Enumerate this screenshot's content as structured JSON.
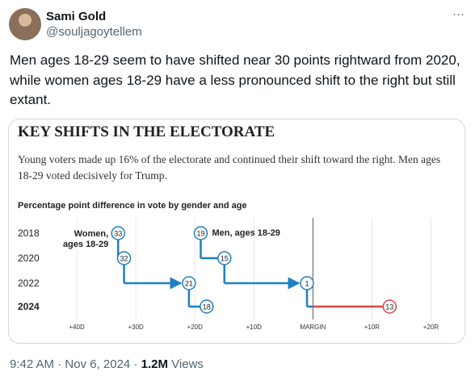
{
  "tweet": {
    "author": "Sami Gold",
    "handle": "@souljagoytellem",
    "more": "···",
    "text": "Men ages 18-29 seem to have shifted near 30 points rightward from 2020, while women ages 18-29 have a less pronounced shift to the right but still extant.",
    "time": "9:42 AM",
    "date": "Nov 6, 2024",
    "views": "1.2M",
    "views_label": "Views"
  },
  "chart_data": {
    "type": "step",
    "title": "KEY SHIFTS IN THE ELECTORATE",
    "subtitle": "Young voters made up 16% of the electorate and continued their shift toward the right. Men ages 18-29 voted decisively for Trump.",
    "axis_title": "Percentage point difference in vote by gender and age",
    "categories": [
      "2018",
      "2020",
      "2022",
      "2024"
    ],
    "series": [
      {
        "name": "Women, ages 18-29",
        "color": "#1f7fc4",
        "values": [
          -33,
          -32,
          -21,
          -18
        ],
        "value_labels": [
          "33",
          "32",
          "21",
          "18"
        ]
      },
      {
        "name": "Men, ages 18-29",
        "color": "#1f7fc4",
        "values": [
          -19,
          -15,
          -1,
          13
        ],
        "value_labels": [
          "19",
          "15",
          "1",
          "13"
        ]
      }
    ],
    "right_color": "#d9454a",
    "xlim": [
      -50,
      25
    ],
    "xticks": [
      {
        "value": -40,
        "label": "+40D"
      },
      {
        "value": -30,
        "label": "+30D"
      },
      {
        "value": -20,
        "label": "+20D"
      },
      {
        "value": -10,
        "label": "+10D"
      },
      {
        "value": 0,
        "label": "MARGIN"
      },
      {
        "value": 10,
        "label": "+10R"
      },
      {
        "value": 20,
        "label": "+20R"
      }
    ],
    "grid": true
  }
}
